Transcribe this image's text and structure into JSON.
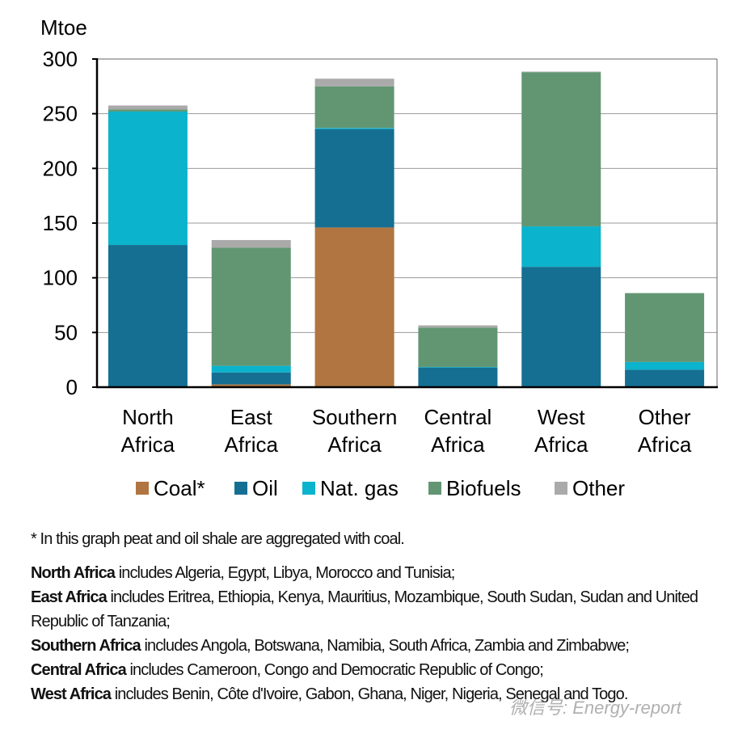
{
  "chart_data": {
    "type": "bar",
    "stacked": true,
    "ylabel": "Mtoe",
    "ylim": [
      0,
      300
    ],
    "yticks": [
      "0",
      "50",
      "100",
      "150",
      "200",
      "250",
      "300"
    ],
    "grid": true,
    "legend_position": "bottom",
    "categories": [
      [
        "North",
        "Africa"
      ],
      [
        "East",
        "Africa"
      ],
      [
        "Southern",
        "Africa"
      ],
      [
        "Central",
        "Africa"
      ],
      [
        "West",
        "Africa"
      ],
      [
        "Other",
        "Africa"
      ]
    ],
    "series": [
      {
        "name": "Coal*",
        "color": "#b07540",
        "values": [
          0,
          2.5,
          146,
          0,
          0,
          0
        ]
      },
      {
        "name": "Oil",
        "color": "#156f92",
        "values": [
          130,
          11,
          90,
          18,
          110,
          16
        ]
      },
      {
        "name": "Nat. gas",
        "color": "#0bb3cc",
        "values": [
          122,
          6,
          1,
          0.5,
          37,
          7
        ]
      },
      {
        "name": "Biofuels",
        "color": "#629673",
        "values": [
          2,
          108,
          38,
          36,
          141,
          63
        ]
      },
      {
        "name": "Other",
        "color": "#aaaaaa",
        "values": [
          3.5,
          7,
          7,
          2,
          0.5,
          0
        ]
      }
    ]
  },
  "notes": {
    "footnote": "* In this graph peat and oil shale are aggregated with coal.",
    "regions": [
      {
        "name": "North Africa",
        "text": " includes Algeria, Egypt, Libya, Morocco and Tunisia;"
      },
      {
        "name": "East Africa",
        "text": " includes Eritrea, Ethiopia, Kenya, Mauritius, Mozambique, South Sudan, Sudan and United Republic of Tanzania;"
      },
      {
        "name": "Southern Africa",
        "text": " includes Angola, Botswana, Namibia, South Africa, Zambia and Zimbabwe;"
      },
      {
        "name": "Central Africa",
        "text": " includes Cameroon, Congo and Democratic Republic of Congo;"
      },
      {
        "name": "West Africa",
        "text": " includes Benin, Côte d'Ivoire, Gabon, Ghana, Niger, Nigeria, Senegal and Togo."
      }
    ]
  },
  "watermark": "微信号: Energy-report"
}
